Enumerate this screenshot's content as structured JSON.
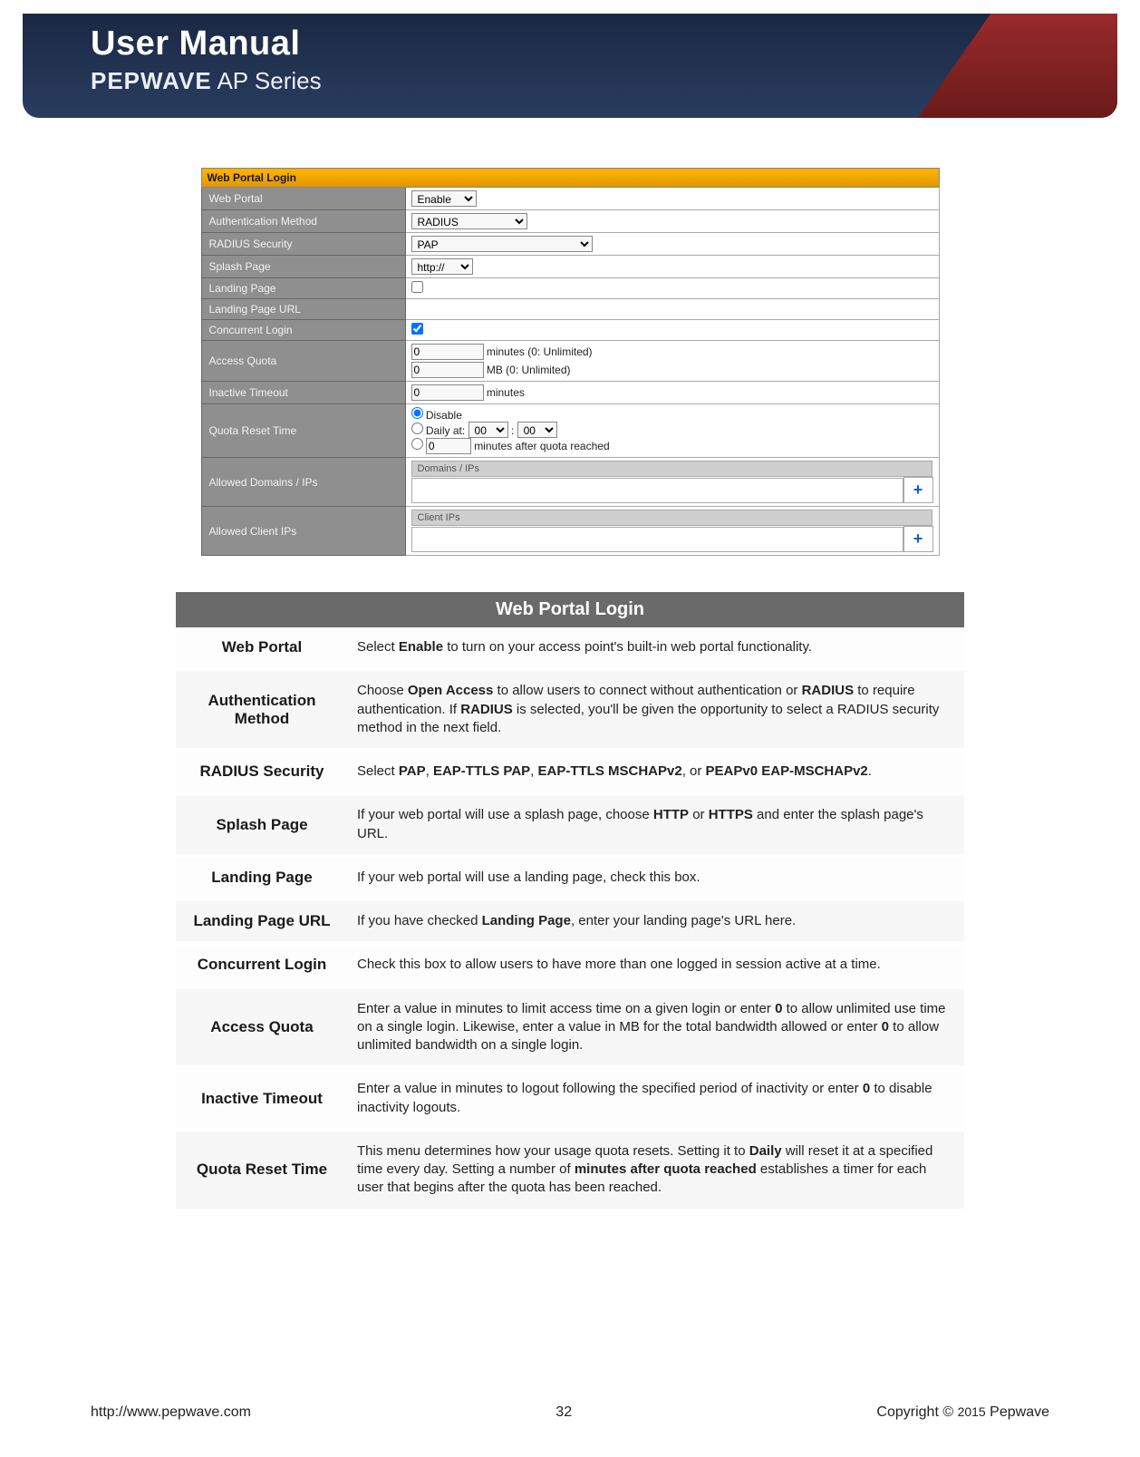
{
  "header": {
    "title": "User Manual",
    "brand": "PEPWAVE",
    "series": " AP Series"
  },
  "form": {
    "section_title": "Web Portal Login",
    "rows": {
      "web_portal": {
        "label": "Web Portal",
        "value": "Enable"
      },
      "auth_method": {
        "label": "Authentication Method",
        "value": "RADIUS"
      },
      "radius_security": {
        "label": "RADIUS Security",
        "value": "PAP"
      },
      "splash_page": {
        "label": "Splash Page",
        "value": "http://"
      },
      "landing_page": {
        "label": "Landing Page"
      },
      "landing_page_url": {
        "label": "Landing Page URL"
      },
      "concurrent_login": {
        "label": "Concurrent Login"
      },
      "access_quota": {
        "label": "Access Quota",
        "min_value": "0",
        "min_text": "minutes (0: Unlimited)",
        "mb_value": "0",
        "mb_text": "MB (0: Unlimited)"
      },
      "inactive_timeout": {
        "label": "Inactive Timeout",
        "value": "0",
        "text": "minutes"
      },
      "quota_reset": {
        "label": "Quota Reset Time",
        "opt_disable": "Disable",
        "opt_daily_label": "Daily at:",
        "daily_h": "00",
        "daily_sep": ":",
        "daily_m": "00",
        "opt_min_value": "0",
        "opt_min_text": "minutes after quota reached"
      },
      "allowed_domains": {
        "label": "Allowed Domains / IPs",
        "subhead": "Domains / IPs"
      },
      "allowed_clients": {
        "label": "Allowed Client IPs",
        "subhead": "Client IPs"
      }
    }
  },
  "desc": {
    "title": "Web Portal Login",
    "items": [
      {
        "term": "Web Portal",
        "html": "Select <b>Enable</b> to turn on your access point's built-in web portal functionality."
      },
      {
        "term": "Authentication Method",
        "html": "Choose <b>Open Access</b> to allow users to connect without authentication or <b>RADIUS</b> to require authentication. If <b>RADIUS</b> is selected, you'll be given the opportunity to select a RADIUS security method in the next field."
      },
      {
        "term": "RADIUS Security",
        "html": "Select <b>PAP</b>, <b>EAP-TTLS PAP</b>, <b>EAP-TTLS MSCHAPv2</b>, or <b>PEAPv0 EAP-MSCHAPv2</b>."
      },
      {
        "term": "Splash Page",
        "html": "If your web portal will use a splash page, choose <b>HTTP</b> or <b>HTTPS</b> and enter the splash page's URL."
      },
      {
        "term": "Landing Page",
        "html": "If your web portal will use a landing page, check this box."
      },
      {
        "term": "Landing Page URL",
        "html": "If you have checked <b>Landing Page</b>, enter your landing page's URL here."
      },
      {
        "term": "Concurrent Login",
        "html": "Check this box to allow users to have more than one logged in session active at a time."
      },
      {
        "term": "Access Quota",
        "html": "Enter a value in minutes to limit access time on a given login or enter <b>0</b> to allow unlimited use time on a single login. Likewise, enter a value in MB for the total bandwidth allowed or enter <b>0</b> to allow unlimited bandwidth on a single login."
      },
      {
        "term": "Inactive Timeout",
        "html": "Enter a value in minutes to logout following the specified period of inactivity or enter <b>0</b> to disable inactivity logouts."
      },
      {
        "term": "Quota Reset Time",
        "html": "This menu determines how your usage quota resets. Setting it to <b>Daily</b> will reset it at a specified time every day. Setting a number of <b>minutes after quota reached</b> establishes a timer for each user that begins after the quota has been reached."
      }
    ]
  },
  "footer": {
    "url": "http://www.pepwave.com",
    "page": "32",
    "copyright_pre": "Copyright  © ",
    "year": "2015",
    "copyright_post": "  Pepwave"
  },
  "colors": {
    "banner_dark": "#1a2844",
    "banner_red": "#9a2a2a",
    "form_header_bg": "#ffb400",
    "form_label_bg": "#8f8f8f",
    "desc_title_bg": "#6a6a6a",
    "plus_color": "#0a60d8"
  }
}
